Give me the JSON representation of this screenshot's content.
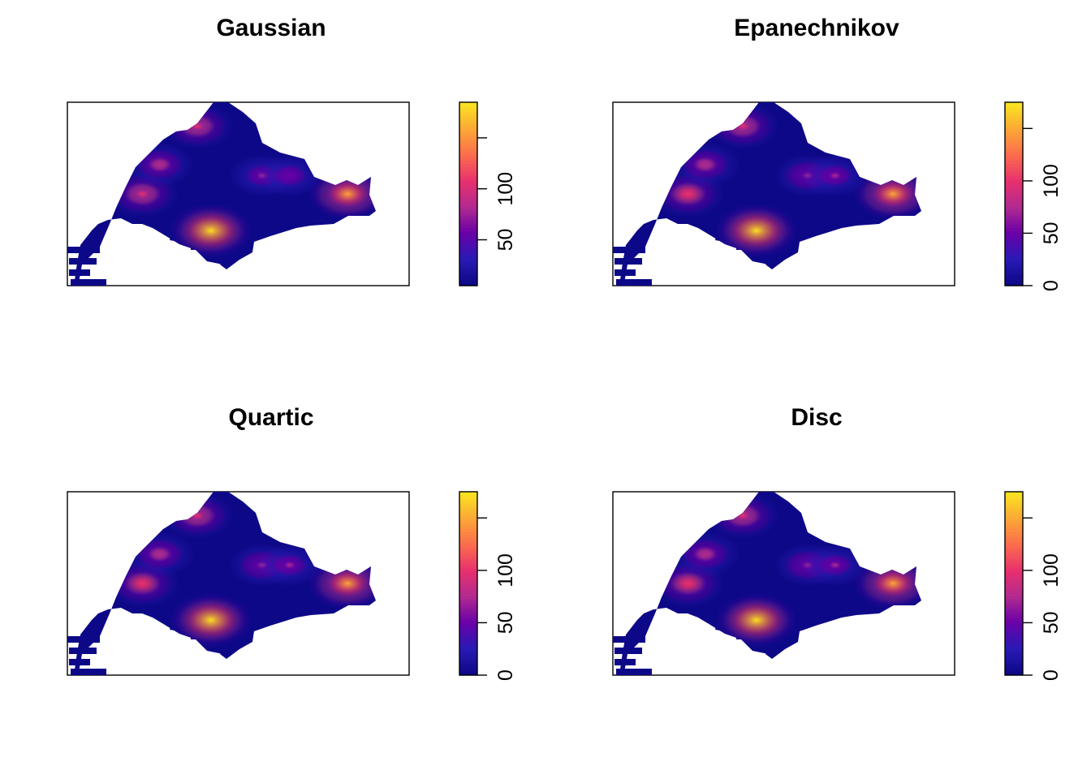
{
  "chart_data": [
    {
      "type": "heatmap",
      "title": "Gaussian",
      "xlabel": "",
      "ylabel": "",
      "legend": "right",
      "grid": false,
      "colorbar": {
        "ticks": [
          50,
          100,
          150
        ],
        "tick_labels": [
          "50",
          "100",
          ""
        ],
        "range": [
          5,
          185
        ]
      },
      "colorscale": [
        "#0D0887",
        "#2A1AB5",
        "#6A00A8",
        "#B12A90",
        "#E8306E",
        "#FB6B4E",
        "#FCA636",
        "#F9E221"
      ],
      "hotspots": [
        {
          "x": 0.42,
          "y": 0.3,
          "value": 185
        },
        {
          "x": 0.38,
          "y": 0.87,
          "value": 100
        },
        {
          "x": 0.82,
          "y": 0.5,
          "value": 160
        },
        {
          "x": 0.22,
          "y": 0.5,
          "value": 105
        },
        {
          "x": 0.27,
          "y": 0.66,
          "value": 85
        },
        {
          "x": 0.57,
          "y": 0.6,
          "value": 70
        },
        {
          "x": 0.65,
          "y": 0.6,
          "value": 65
        }
      ]
    },
    {
      "type": "heatmap",
      "title": "Epanechnikov",
      "xlabel": "",
      "ylabel": "",
      "legend": "right",
      "grid": false,
      "colorbar": {
        "ticks": [
          0,
          50,
          100,
          150
        ],
        "tick_labels": [
          "0",
          "50",
          "100",
          ""
        ],
        "range": [
          0,
          175
        ]
      },
      "colorscale": [
        "#0D0887",
        "#2A1AB5",
        "#6A00A8",
        "#B12A90",
        "#E8306E",
        "#FB6B4E",
        "#FCA636",
        "#F9E221"
      ],
      "hotspots": [
        {
          "x": 0.42,
          "y": 0.3,
          "value": 175
        },
        {
          "x": 0.38,
          "y": 0.87,
          "value": 100
        },
        {
          "x": 0.82,
          "y": 0.5,
          "value": 150
        },
        {
          "x": 0.22,
          "y": 0.5,
          "value": 105
        },
        {
          "x": 0.27,
          "y": 0.66,
          "value": 85
        },
        {
          "x": 0.57,
          "y": 0.6,
          "value": 70
        },
        {
          "x": 0.65,
          "y": 0.6,
          "value": 65
        }
      ]
    },
    {
      "type": "heatmap",
      "title": "Quartic",
      "xlabel": "",
      "ylabel": "",
      "legend": "right",
      "grid": false,
      "colorbar": {
        "ticks": [
          0,
          50,
          100,
          150
        ],
        "tick_labels": [
          "0",
          "50",
          "100",
          ""
        ],
        "range": [
          0,
          175
        ]
      },
      "colorscale": [
        "#0D0887",
        "#2A1AB5",
        "#6A00A8",
        "#B12A90",
        "#E8306E",
        "#FB6B4E",
        "#FCA636",
        "#F9E221"
      ],
      "hotspots": [
        {
          "x": 0.42,
          "y": 0.3,
          "value": 175
        },
        {
          "x": 0.38,
          "y": 0.87,
          "value": 100
        },
        {
          "x": 0.82,
          "y": 0.5,
          "value": 150
        },
        {
          "x": 0.22,
          "y": 0.5,
          "value": 105
        },
        {
          "x": 0.27,
          "y": 0.66,
          "value": 85
        },
        {
          "x": 0.57,
          "y": 0.6,
          "value": 70
        },
        {
          "x": 0.65,
          "y": 0.6,
          "value": 65
        }
      ]
    },
    {
      "type": "heatmap",
      "title": "Disc",
      "xlabel": "",
      "ylabel": "",
      "legend": "right",
      "grid": false,
      "colorbar": {
        "ticks": [
          0,
          50,
          100,
          150
        ],
        "tick_labels": [
          "0",
          "50",
          "100",
          ""
        ],
        "range": [
          0,
          175
        ]
      },
      "colorscale": [
        "#0D0887",
        "#2A1AB5",
        "#6A00A8",
        "#B12A90",
        "#E8306E",
        "#FB6B4E",
        "#FCA636",
        "#F9E221"
      ],
      "hotspots": [
        {
          "x": 0.42,
          "y": 0.3,
          "value": 170
        },
        {
          "x": 0.38,
          "y": 0.87,
          "value": 100
        },
        {
          "x": 0.82,
          "y": 0.5,
          "value": 150
        },
        {
          "x": 0.22,
          "y": 0.5,
          "value": 105
        },
        {
          "x": 0.27,
          "y": 0.66,
          "value": 85
        },
        {
          "x": 0.57,
          "y": 0.6,
          "value": 70
        },
        {
          "x": 0.65,
          "y": 0.6,
          "value": 65
        }
      ]
    }
  ]
}
